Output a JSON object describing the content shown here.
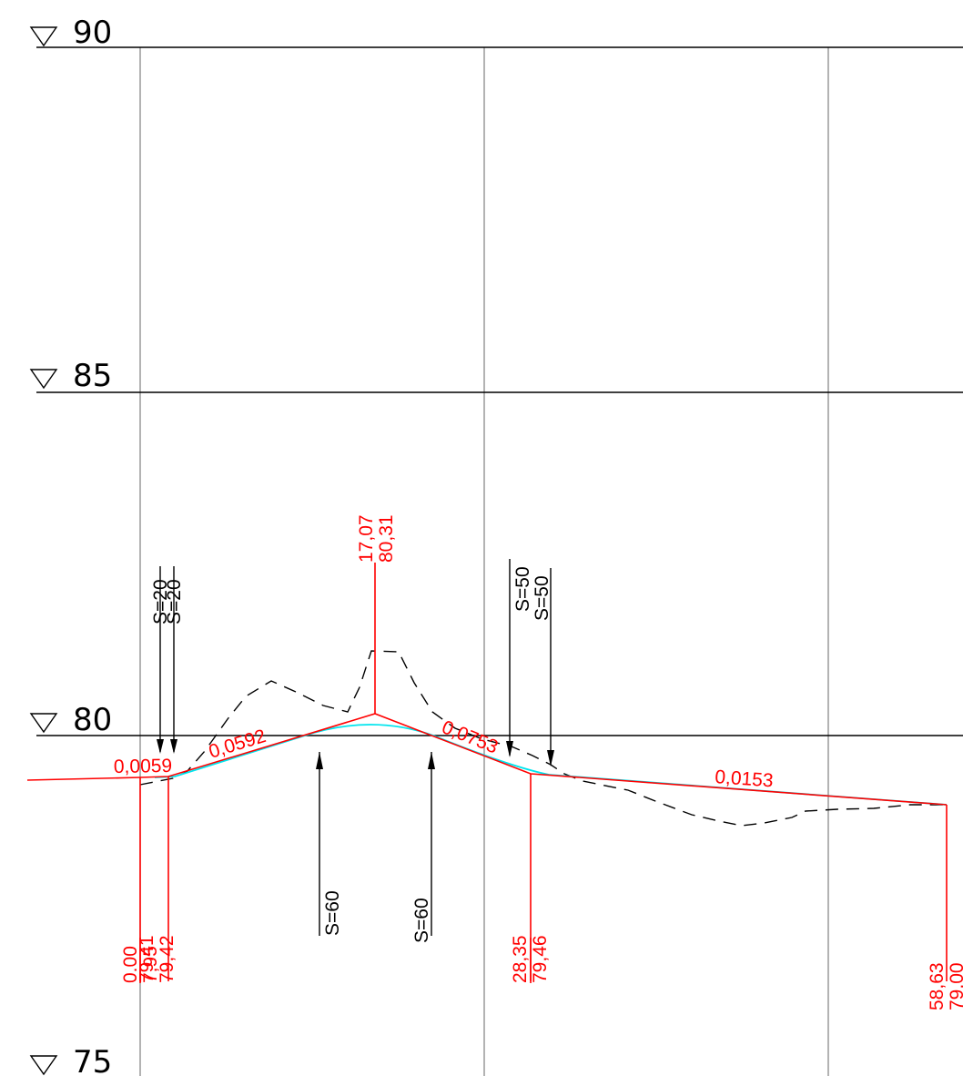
{
  "levels": [
    {
      "label": "90"
    },
    {
      "label": "85"
    },
    {
      "label": "80"
    },
    {
      "label": "75"
    }
  ],
  "grades": {
    "g1": "0,0059",
    "g2": "0,0592",
    "g3": "0,0753",
    "g4": "0,0153"
  },
  "stations": {
    "s0": {
      "station": "0.00",
      "elev": "79,41"
    },
    "s1": {
      "station": "7,95",
      "elev": "79,42"
    },
    "crest": {
      "station": "17,07",
      "elev": "80,31"
    },
    "s3": {
      "station": "28,35",
      "elev": "79,46"
    },
    "s4": {
      "station": "58,63",
      "elev": "79,00"
    }
  },
  "curves": {
    "s20a": "S=20",
    "s20b": "S=20",
    "s60a": "S=60",
    "s60b": "S=60",
    "s50a": "S=50",
    "s50b": "S=50"
  },
  "colors": {
    "design_profile": "#ff0000",
    "vertical_curve": "#00e5ee",
    "existing_ground": "#000000",
    "grid": "#808080"
  }
}
